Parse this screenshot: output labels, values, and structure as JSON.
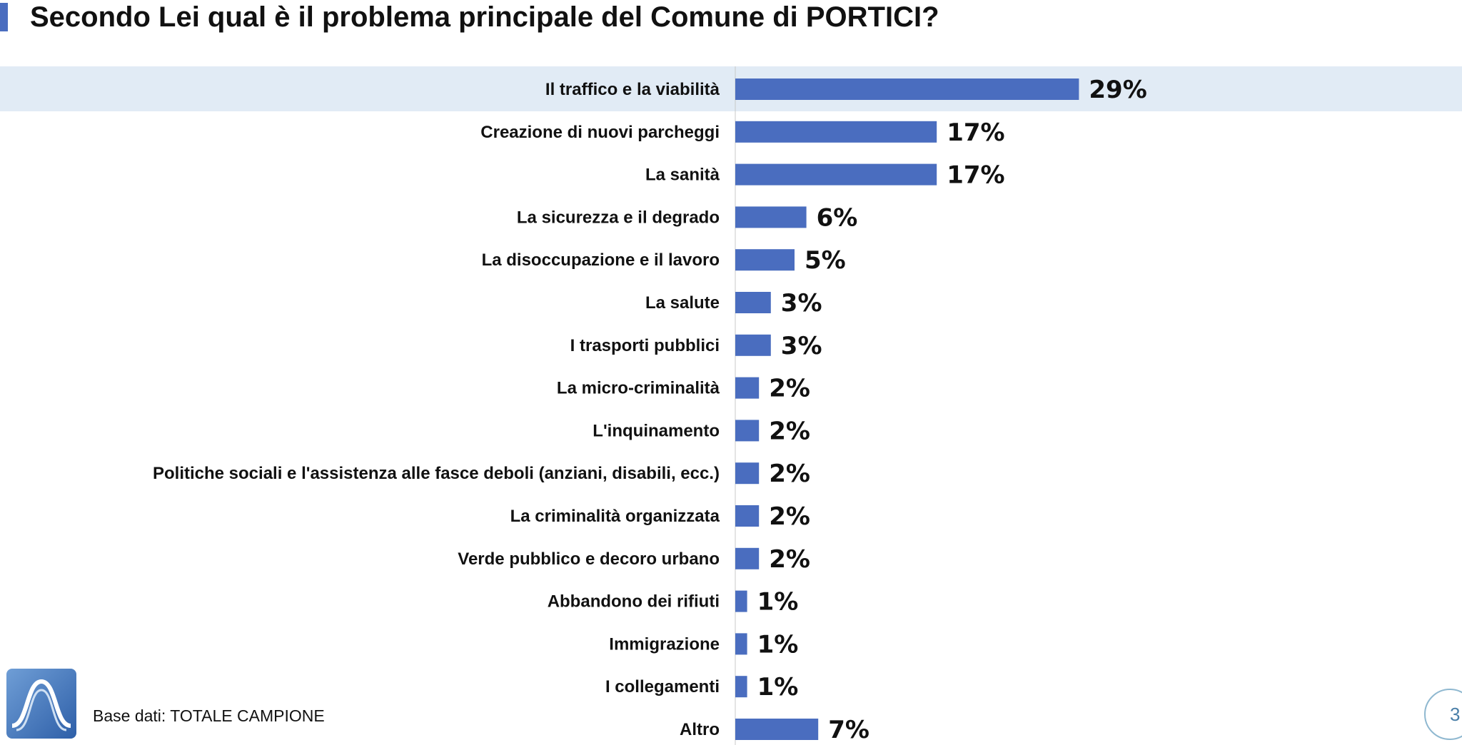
{
  "title": "Secondo Lei qual è il problema principale del Comune di PORTICI?",
  "footer": {
    "base": "Base dati: TOTALE CAMPIONE",
    "page": "3"
  },
  "colors": {
    "bar": "#4a6dbf",
    "highlight": "#e1ebf5",
    "accent": "#4a6dbf",
    "axis": "#c8c8c8"
  },
  "icons": {
    "logo": "sine-wave-logo-icon"
  },
  "chart_data": {
    "type": "bar",
    "orientation": "horizontal",
    "title": "Secondo Lei qual è il problema principale del Comune di PORTICI?",
    "categories": [
      "Il traffico e la viabilità",
      "Creazione di nuovi parcheggi",
      "La sanità",
      "La sicurezza e il degrado",
      "La disoccupazione e il lavoro",
      "La salute",
      "I trasporti pubblici",
      "La micro-criminalità",
      "L'inquinamento",
      "Politiche sociali e l'assistenza alle fasce deboli (anziani, disabili, ecc.)",
      "La criminalità organizzata",
      "Verde pubblico e decoro urbano",
      "Abbandono dei rifiuti",
      "Immigrazione",
      "I collegamenti",
      "Altro"
    ],
    "values": [
      29,
      17,
      17,
      6,
      5,
      3,
      3,
      2,
      2,
      2,
      2,
      2,
      1,
      1,
      1,
      7
    ],
    "value_labels": [
      "29%",
      "17%",
      "17%",
      "6%",
      "5%",
      "3%",
      "3%",
      "2%",
      "2%",
      "2%",
      "2%",
      "2%",
      "1%",
      "1%",
      "1%",
      "7%"
    ],
    "unit": "%",
    "highlighted_category": "Il traffico e la viabilità",
    "grid": false,
    "legend": "none"
  }
}
